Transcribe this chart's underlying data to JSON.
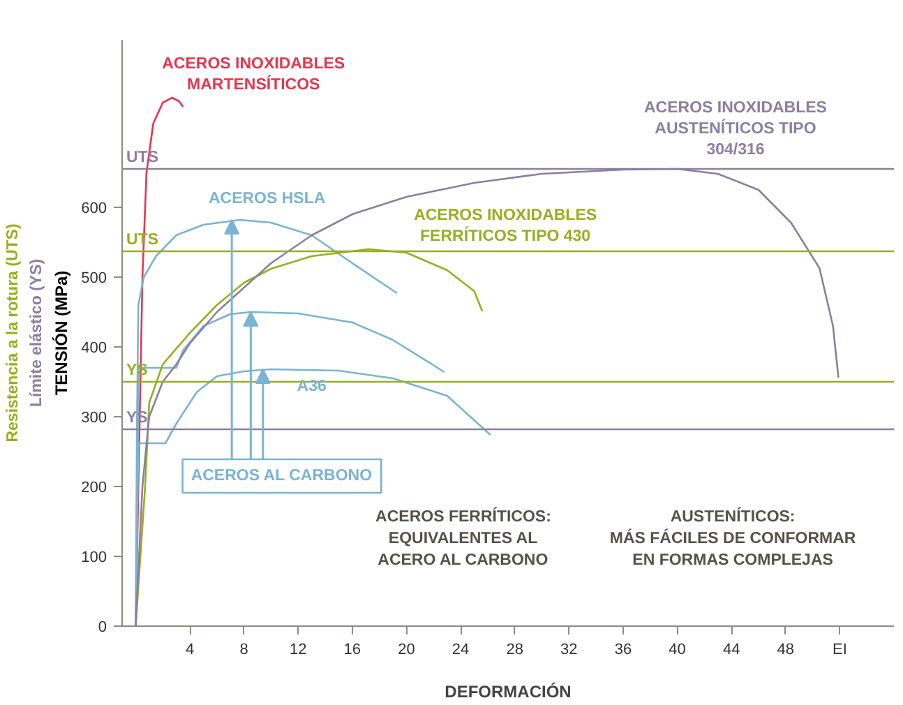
{
  "chart_data": {
    "type": "line",
    "xlabel": "DEFORMACIÓN",
    "ylabel": "TENSIÓN (MPa)",
    "xlim": [
      -1,
      56
    ],
    "ylim": [
      0,
      840
    ],
    "xticks": [
      4,
      8,
      12,
      16,
      20,
      24,
      28,
      32,
      36,
      40,
      44,
      48,
      {
        "value": 52,
        "label": "EI"
      }
    ],
    "yticks": [
      0,
      100,
      200,
      300,
      400,
      500,
      600
    ],
    "grid": false,
    "series": [
      {
        "name": "ACEROS INOXIDABLES\nMARTENSÍTICOS",
        "color": "#e8344e",
        "x": [
          0,
          0.3,
          0.5,
          0.8,
          1.3,
          2,
          2.7,
          3.2,
          3.5
        ],
        "values": [
          0,
          300,
          500,
          650,
          720,
          750,
          757,
          752,
          744
        ]
      },
      {
        "name": "ACEROS HSLA",
        "color": "#7ab3d3",
        "x": [
          0,
          0.1,
          0.2,
          0.6,
          1.5,
          3,
          5,
          7.7,
          10,
          13,
          16,
          19.3
        ],
        "values": [
          0,
          300,
          460,
          500,
          530,
          560,
          575,
          582,
          578,
          560,
          520,
          477
        ]
      },
      {
        "color": "#7ab3d3",
        "x": [
          0,
          0.2,
          3,
          3.5,
          5,
          7,
          8.5,
          12,
          16,
          19,
          22.8
        ],
        "values": [
          0,
          370,
          370,
          395,
          430,
          447,
          450,
          448,
          435,
          410,
          364
        ]
      },
      {
        "name": "A36",
        "color": "#7ab3d3",
        "x": [
          0,
          0.2,
          2.2,
          3,
          4.5,
          6,
          8,
          10,
          15,
          19,
          23,
          26.2
        ],
        "values": [
          0,
          262,
          262,
          290,
          335,
          358,
          365,
          368,
          366,
          355,
          330,
          274
        ]
      },
      {
        "name": "ACEROS INOXIDABLES\nFERRÍTICOS TIPO 430",
        "color": "#95b01e",
        "x": [
          0,
          0.7,
          1,
          2,
          4,
          6,
          8,
          10,
          13,
          17.2,
          20,
          23,
          25,
          25.6
        ],
        "values": [
          0,
          200,
          320,
          375,
          420,
          460,
          492,
          512,
          530,
          540,
          535,
          510,
          480,
          451
        ]
      },
      {
        "name": "ACEROS INOXIDABLES\nAUSTENÍTICOS TIPO\n304/316",
        "color": "#8a7fa0",
        "x": [
          0,
          0.5,
          1,
          2,
          3,
          4,
          6,
          8,
          10,
          13,
          16,
          20,
          25,
          30,
          36,
          40,
          43,
          46,
          48.4,
          50.5,
          51.5,
          51.9
        ],
        "values": [
          0,
          200,
          300,
          350,
          375,
          405,
          450,
          485,
          520,
          560,
          590,
          615,
          635,
          648,
          654,
          655,
          648,
          625,
          578,
          513,
          430,
          356
        ]
      }
    ],
    "ref_lines": [
      {
        "axis": "y",
        "value": 655,
        "label": "UTS",
        "color": "#8a7fa0"
      },
      {
        "axis": "y",
        "value": 537,
        "label": "UTS",
        "color": "#95b01e"
      },
      {
        "axis": "y",
        "value": 350,
        "label": "YS",
        "color": "#95b01e"
      },
      {
        "axis": "y",
        "value": 282,
        "label": "YS",
        "color": "#8a7fa0"
      }
    ],
    "annotations": [
      {
        "text": "ACEROS AL CARBONO",
        "x": 8.5,
        "y": 450
      },
      "ACEROS FERRÍTICOS:\nEQUIVALENTES AL\nACERO AL CARBONO",
      "AUSTENÍTICOS:\nMÁS FÁCILES DE CONFORMAR\nEN FORMAS COMPLEJAS",
      "Resistencia a la rotura (UTS)",
      "Límite elástico (YS)"
    ]
  }
}
